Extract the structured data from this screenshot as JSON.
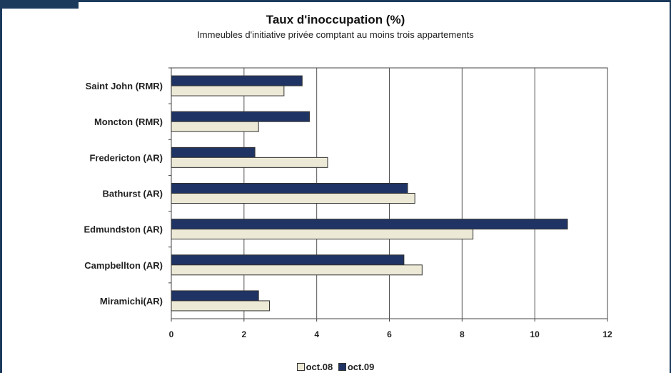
{
  "chart_data": {
    "type": "bar",
    "orientation": "horizontal",
    "title": "Taux d'inoccupation (%)",
    "subtitle": "Immeubles d'initiative privée comptant au moins trois appartements",
    "categories": [
      "Saint John (RMR)",
      "Moncton (RMR)",
      "Fredericton (AR)",
      "Bathurst (AR)",
      "Edmundston (AR)",
      "Campbellton (AR)",
      "Miramichi(AR)"
    ],
    "series": [
      {
        "name": "oct.09",
        "color": "#1f3464",
        "values": [
          3.6,
          3.8,
          2.3,
          6.5,
          10.9,
          6.4,
          2.4
        ]
      },
      {
        "name": "oct.08",
        "color": "#ece9d6",
        "values": [
          3.1,
          2.4,
          4.3,
          6.7,
          8.3,
          6.9,
          2.7
        ]
      }
    ],
    "xlim": [
      0,
      12
    ],
    "xticks": [
      "0",
      "2",
      "4",
      "6",
      "8",
      "10",
      "12"
    ],
    "grid": true,
    "legend": {
      "position": "bottom",
      "items": [
        {
          "label": "oct.08",
          "color": "#ece9d6"
        },
        {
          "label": "oct.09",
          "color": "#1f3464"
        }
      ]
    }
  }
}
